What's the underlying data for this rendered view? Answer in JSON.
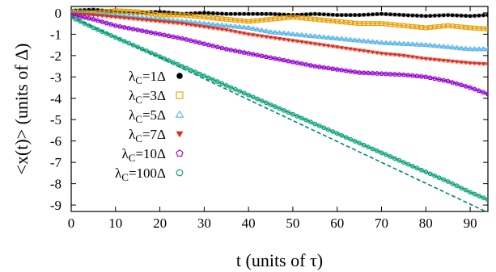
{
  "chart_data": {
    "type": "scatter",
    "xlabel": "t (units of τ)",
    "ylabel": "<x(t)> (units of Δ)",
    "xlim": [
      0,
      94
    ],
    "ylim": [
      -9.3,
      0.3
    ],
    "xticks": [
      0,
      10,
      20,
      30,
      40,
      50,
      60,
      70,
      80,
      90
    ],
    "yticks": [
      0,
      -1,
      -2,
      -3,
      -4,
      -5,
      -6,
      -7,
      -8,
      -9
    ],
    "grid": false,
    "legend_position": "left-center",
    "series": [
      {
        "name": "λC=1Δ",
        "legend_main": "λ",
        "legend_sub": "C",
        "legend_rest": "=1Δ",
        "marker": "circle-filled",
        "color": "#000000",
        "x": [
          0,
          5,
          10,
          15,
          20,
          25,
          30,
          35,
          40,
          45,
          50,
          55,
          60,
          65,
          70,
          75,
          80,
          85,
          90,
          94
        ],
        "y": [
          0.1,
          0.15,
          0.05,
          0.0,
          0.05,
          -0.05,
          0.0,
          -0.05,
          -0.05,
          -0.05,
          -0.1,
          -0.05,
          -0.1,
          -0.1,
          -0.05,
          -0.1,
          -0.15,
          -0.1,
          -0.15,
          -0.1
        ]
      },
      {
        "name": "λC=3Δ",
        "legend_main": "λ",
        "legend_sub": "C",
        "legend_rest": "=3Δ",
        "marker": "square-open",
        "color": "#e69f00",
        "x": [
          0,
          5,
          10,
          15,
          20,
          25,
          30,
          35,
          40,
          45,
          50,
          55,
          60,
          65,
          70,
          75,
          80,
          85,
          90,
          94
        ],
        "y": [
          0.05,
          0.0,
          0.1,
          0.05,
          -0.1,
          -0.1,
          -0.2,
          -0.3,
          -0.4,
          -0.3,
          -0.2,
          -0.3,
          -0.4,
          -0.5,
          -0.5,
          -0.6,
          -0.7,
          -0.6,
          -0.7,
          -0.75
        ]
      },
      {
        "name": "λC=5Δ",
        "legend_main": "λ",
        "legend_sub": "C",
        "legend_rest": "=5Δ",
        "marker": "triangle-open",
        "color": "#56b4e9",
        "x": [
          0,
          5,
          10,
          15,
          20,
          25,
          30,
          35,
          40,
          45,
          50,
          55,
          60,
          65,
          70,
          75,
          80,
          85,
          90,
          94
        ],
        "y": [
          0.0,
          -0.05,
          -0.1,
          -0.2,
          -0.3,
          -0.4,
          -0.5,
          -0.6,
          -0.7,
          -0.9,
          -1.0,
          -1.1,
          -1.2,
          -1.3,
          -1.4,
          -1.45,
          -1.5,
          -1.6,
          -1.7,
          -1.7
        ]
      },
      {
        "name": "λC=7Δ",
        "legend_main": "λ",
        "legend_sub": "C",
        "legend_rest": "=7Δ",
        "marker": "triangle-down-filled",
        "color": "#d7301f",
        "x": [
          0,
          5,
          10,
          15,
          20,
          25,
          30,
          35,
          40,
          45,
          50,
          55,
          60,
          65,
          70,
          75,
          80,
          85,
          90,
          94
        ],
        "y": [
          -0.05,
          -0.1,
          -0.2,
          -0.3,
          -0.4,
          -0.5,
          -0.65,
          -0.8,
          -1.0,
          -1.15,
          -1.3,
          -1.45,
          -1.6,
          -1.75,
          -1.9,
          -2.0,
          -2.15,
          -2.25,
          -2.35,
          -2.4
        ]
      },
      {
        "name": "λC=10Δ",
        "legend_main": "λ",
        "legend_sub": "C",
        "legend_rest": "=10Δ",
        "marker": "pentagon-open",
        "color": "#9400d3",
        "x": [
          0,
          5,
          10,
          15,
          20,
          25,
          30,
          35,
          40,
          45,
          50,
          55,
          60,
          65,
          70,
          75,
          80,
          85,
          90,
          94
        ],
        "y": [
          -0.1,
          -0.3,
          -0.6,
          -0.8,
          -1.0,
          -1.2,
          -1.45,
          -1.7,
          -1.9,
          -2.1,
          -2.3,
          -2.5,
          -2.65,
          -2.8,
          -2.85,
          -2.9,
          -3.0,
          -3.2,
          -3.5,
          -3.8
        ]
      },
      {
        "name": "λC=100Δ",
        "legend_main": "λ",
        "legend_sub": "C",
        "legend_rest": "=100Δ",
        "marker": "circle-open",
        "color": "#009e73",
        "x": [
          0,
          5,
          10,
          15,
          20,
          25,
          30,
          35,
          40,
          45,
          50,
          55,
          60,
          65,
          70,
          75,
          80,
          85,
          90,
          94
        ],
        "y": [
          -0.2,
          -0.7,
          -1.15,
          -1.6,
          -2.05,
          -2.5,
          -2.95,
          -3.4,
          -3.85,
          -4.3,
          -4.75,
          -5.2,
          -5.65,
          -6.1,
          -6.55,
          -7.0,
          -7.45,
          -7.9,
          -8.4,
          -8.75
        ]
      }
    ],
    "reference_line": {
      "color": "#00876a",
      "x": [
        0,
        94
      ],
      "y": [
        -0.15,
        -9.35
      ]
    }
  }
}
